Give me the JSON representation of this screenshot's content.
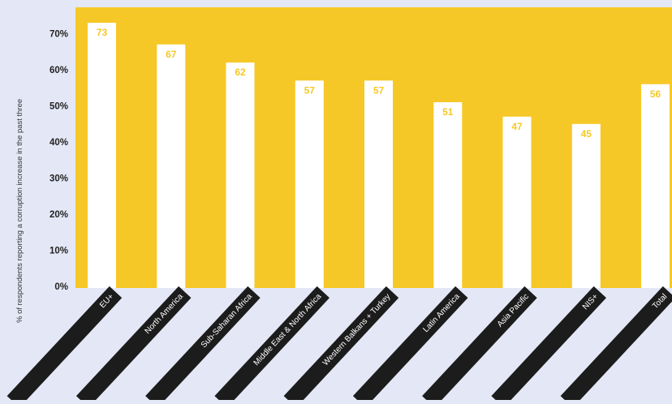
{
  "chart_data": {
    "type": "bar",
    "title": "",
    "ylabel": "% of respondents reporting a corruption increase in the past three",
    "xlabel": "",
    "categories": [
      "EU+",
      "North America",
      "Sub-Saharan Africa",
      "Middle East & North Africa",
      "Western Balkans + Turkey",
      "Latin America",
      "Asia Pacific",
      "NIS+",
      "Total"
    ],
    "series": [
      {
        "values": [
          73,
          67,
          62,
          57,
          57,
          51,
          47,
          45,
          56
        ]
      }
    ],
    "data_labels": [
      "73",
      "67",
      "62",
      "57",
      "57",
      "51",
      "47",
      "45",
      "56"
    ],
    "yticks": [
      "0%",
      "10%",
      "20%",
      "30%",
      "40%",
      "50%",
      "60%",
      "70%"
    ],
    "ylim": [
      0,
      78
    ],
    "grid": false,
    "legend": "none",
    "colors": {
      "page_background": "#e4e8f6",
      "plot_background": "#f6c827",
      "bar": "#ffffff",
      "data_label": "#f6c827",
      "category_band": "#1c1c1c",
      "category_text": "#ffffff",
      "axis_text": "#222222"
    }
  }
}
